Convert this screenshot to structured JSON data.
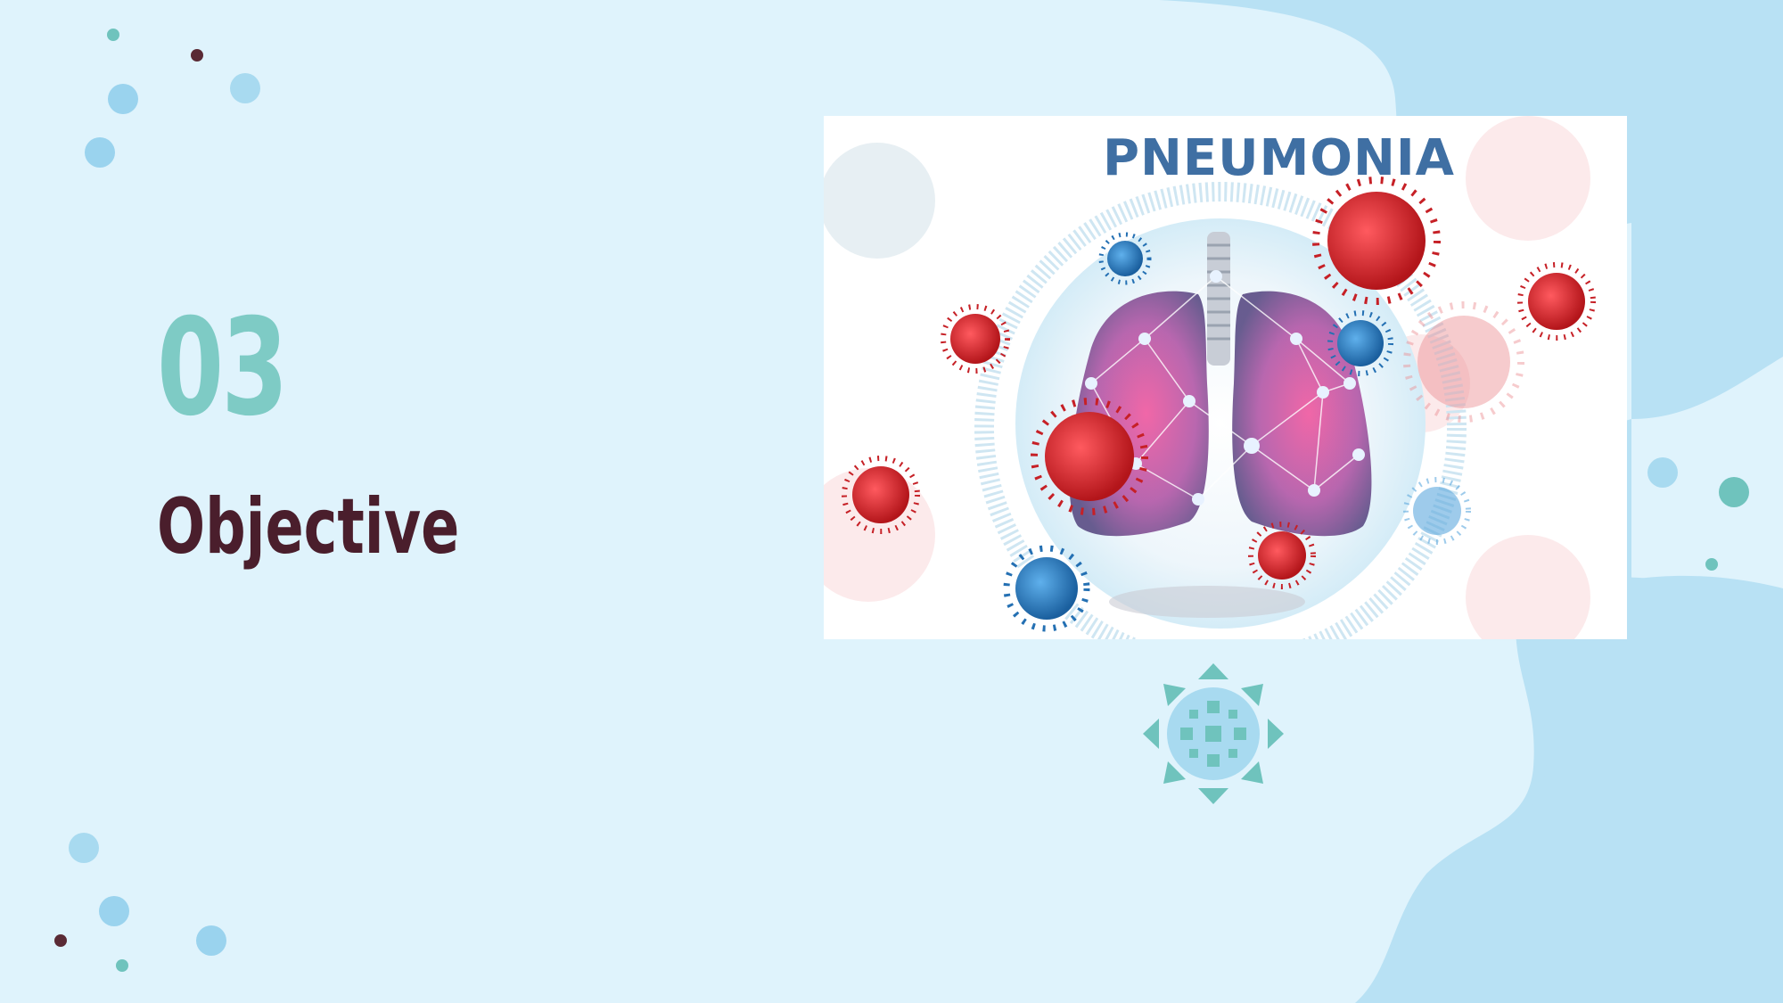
{
  "slide": {
    "number": "03",
    "title": "Objective"
  },
  "image": {
    "heading": "PNEUMONIA"
  },
  "colors": {
    "background": "#dff3fc",
    "blob": "#b6e0f4",
    "number": "#7ecbc5",
    "title": "#4a1e2c",
    "image_heading": "#3f6fa3",
    "virus_red": "#d92a2f",
    "virus_blue": "#2f7fc4",
    "lung": "#8a6fb8",
    "teal": "#6fc3bd"
  },
  "icons": [
    "lungs-illustration",
    "virus-icon",
    "coronavirus-icon",
    "dot-decoration"
  ]
}
